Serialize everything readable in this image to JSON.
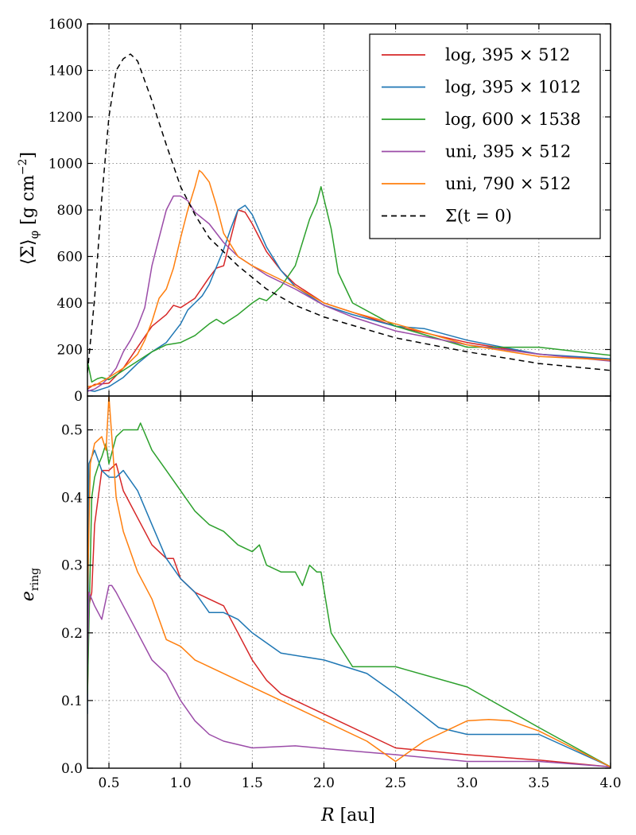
{
  "chart_data": [
    {
      "type": "line",
      "ylabel_main": "⟨Σ⟩",
      "ylabel_sub": "φ",
      "ylabel_unit": "[g cm",
      "ylabel_exp": "−2",
      "ylabel_close": "]",
      "xlim": [
        0.35,
        4.0
      ],
      "ylim": [
        0,
        1600
      ],
      "yticks": [
        "0",
        "200",
        "400",
        "600",
        "800",
        "1000",
        "1200",
        "1400",
        "1600"
      ],
      "ytick_values": [
        0,
        200,
        400,
        600,
        800,
        1000,
        1200,
        1400,
        1600
      ],
      "grid": true,
      "legend_position": "top-right",
      "series": [
        {
          "name": "log, 395 × 512",
          "color": "#d62728",
          "style": "solid",
          "x": [
            0.35,
            0.4,
            0.5,
            0.6,
            0.7,
            0.8,
            0.9,
            0.95,
            1.0,
            1.05,
            1.1,
            1.2,
            1.25,
            1.3,
            1.35,
            1.4,
            1.45,
            1.5,
            1.6,
            1.7,
            1.8,
            2.0,
            2.2,
            2.5,
            3.0,
            3.5,
            4.0
          ],
          "y": [
            30,
            50,
            55,
            120,
            210,
            300,
            350,
            390,
            380,
            400,
            420,
            510,
            550,
            560,
            680,
            800,
            790,
            740,
            620,
            540,
            480,
            400,
            360,
            300,
            230,
            180,
            155
          ]
        },
        {
          "name": "log, 395 × 1012",
          "color": "#1f77b4",
          "style": "solid",
          "x": [
            0.35,
            0.4,
            0.5,
            0.6,
            0.7,
            0.8,
            0.9,
            1.0,
            1.05,
            1.1,
            1.15,
            1.2,
            1.3,
            1.35,
            1.4,
            1.45,
            1.5,
            1.6,
            1.7,
            1.8,
            2.0,
            2.2,
            2.5,
            2.7,
            3.0,
            3.5,
            4.0
          ],
          "y": [
            25,
            20,
            40,
            80,
            140,
            190,
            230,
            310,
            370,
            400,
            430,
            480,
            630,
            720,
            800,
            820,
            780,
            640,
            540,
            470,
            390,
            350,
            300,
            290,
            240,
            180,
            160
          ]
        },
        {
          "name": "log, 600 × 1538",
          "color": "#2ca02c",
          "style": "solid",
          "x": [
            0.35,
            0.38,
            0.42,
            0.45,
            0.5,
            0.6,
            0.7,
            0.8,
            0.9,
            1.0,
            1.1,
            1.2,
            1.25,
            1.3,
            1.4,
            1.5,
            1.55,
            1.6,
            1.7,
            1.8,
            1.85,
            1.9,
            1.95,
            1.98,
            2.05,
            2.1,
            2.2,
            2.5,
            3.0,
            3.5,
            4.0
          ],
          "y": [
            150,
            60,
            75,
            80,
            70,
            110,
            150,
            190,
            220,
            230,
            260,
            310,
            330,
            310,
            350,
            400,
            420,
            410,
            470,
            560,
            660,
            760,
            830,
            900,
            720,
            530,
            400,
            300,
            210,
            210,
            175
          ]
        },
        {
          "name": "uni, 395 × 512",
          "color": "#9b4ca8",
          "style": "solid",
          "x": [
            0.35,
            0.4,
            0.45,
            0.5,
            0.55,
            0.6,
            0.65,
            0.7,
            0.75,
            0.8,
            0.85,
            0.9,
            0.95,
            1.0,
            1.05,
            1.1,
            1.2,
            1.3,
            1.4,
            1.5,
            1.6,
            1.8,
            2.0,
            2.2,
            2.5,
            3.0,
            3.5,
            4.0
          ],
          "y": [
            20,
            30,
            50,
            80,
            120,
            190,
            240,
            300,
            380,
            560,
            680,
            800,
            860,
            860,
            840,
            790,
            740,
            660,
            600,
            560,
            520,
            460,
            390,
            340,
            280,
            220,
            180,
            150
          ]
        },
        {
          "name": "uni, 790 × 512",
          "color": "#ff7f0e",
          "style": "solid",
          "x": [
            0.35,
            0.4,
            0.5,
            0.6,
            0.7,
            0.75,
            0.8,
            0.85,
            0.9,
            0.95,
            1.0,
            1.05,
            1.1,
            1.13,
            1.15,
            1.2,
            1.25,
            1.3,
            1.4,
            1.5,
            1.6,
            1.8,
            2.0,
            2.2,
            2.5,
            3.0,
            3.5,
            4.0
          ],
          "y": [
            40,
            45,
            80,
            120,
            180,
            240,
            320,
            420,
            460,
            550,
            680,
            800,
            900,
            970,
            960,
            920,
            820,
            700,
            600,
            560,
            530,
            470,
            400,
            360,
            310,
            220,
            170,
            155
          ]
        },
        {
          "name": "Σ(t = 0)",
          "color": "#000000",
          "style": "dashed",
          "x": [
            0.35,
            0.4,
            0.45,
            0.5,
            0.55,
            0.6,
            0.65,
            0.7,
            0.8,
            0.9,
            1.0,
            1.1,
            1.2,
            1.4,
            1.6,
            1.8,
            2.0,
            2.5,
            3.0,
            3.5,
            4.0
          ],
          "y": [
            100,
            420,
            850,
            1200,
            1400,
            1450,
            1470,
            1440,
            1270,
            1080,
            900,
            780,
            680,
            560,
            460,
            390,
            340,
            250,
            190,
            140,
            110
          ]
        }
      ]
    },
    {
      "type": "line",
      "ylabel_main": "e",
      "ylabel_sub": "ring",
      "xlabel_main": "R",
      "xlabel_unit": "[au]",
      "xlim": [
        0.35,
        4.0
      ],
      "ylim": [
        0,
        0.55
      ],
      "xticks": [
        "0.5",
        "1.0",
        "1.5",
        "2.0",
        "2.5",
        "3.0",
        "3.5",
        "4.0"
      ],
      "xtick_values": [
        0.5,
        1.0,
        1.5,
        2.0,
        2.5,
        3.0,
        3.5,
        4.0
      ],
      "yticks": [
        "0.0",
        "0.1",
        "0.2",
        "0.3",
        "0.4",
        "0.5"
      ],
      "ytick_values": [
        0.0,
        0.1,
        0.2,
        0.3,
        0.4,
        0.5
      ],
      "grid": true,
      "series": [
        {
          "name": "log, 395 × 512",
          "color": "#d62728",
          "style": "solid",
          "x": [
            0.35,
            0.36,
            0.38,
            0.4,
            0.45,
            0.5,
            0.55,
            0.6,
            0.7,
            0.8,
            0.9,
            0.95,
            1.0,
            1.1,
            1.2,
            1.3,
            1.35,
            1.4,
            1.5,
            1.6,
            1.7,
            2.0,
            2.5,
            3.0,
            3.5,
            4.0
          ],
          "y": [
            0.1,
            0.24,
            0.26,
            0.36,
            0.44,
            0.44,
            0.45,
            0.41,
            0.37,
            0.33,
            0.31,
            0.31,
            0.28,
            0.26,
            0.25,
            0.24,
            0.22,
            0.2,
            0.16,
            0.13,
            0.11,
            0.08,
            0.03,
            0.02,
            0.012,
            0.002
          ]
        },
        {
          "name": "log, 395 × 1012",
          "color": "#1f77b4",
          "style": "solid",
          "x": [
            0.35,
            0.36,
            0.4,
            0.45,
            0.5,
            0.55,
            0.6,
            0.7,
            0.8,
            0.9,
            1.0,
            1.1,
            1.2,
            1.3,
            1.4,
            1.5,
            1.7,
            2.0,
            2.3,
            2.5,
            2.8,
            3.0,
            3.5,
            4.0
          ],
          "y": [
            0.08,
            0.45,
            0.47,
            0.44,
            0.43,
            0.43,
            0.44,
            0.41,
            0.36,
            0.31,
            0.28,
            0.26,
            0.23,
            0.23,
            0.22,
            0.2,
            0.17,
            0.16,
            0.14,
            0.11,
            0.06,
            0.05,
            0.05,
            0.002
          ]
        },
        {
          "name": "log, 600 × 1538",
          "color": "#2ca02c",
          "style": "solid",
          "x": [
            0.35,
            0.38,
            0.4,
            0.43,
            0.45,
            0.48,
            0.5,
            0.55,
            0.6,
            0.7,
            0.72,
            0.8,
            0.9,
            1.0,
            1.1,
            1.2,
            1.3,
            1.4,
            1.5,
            1.55,
            1.6,
            1.7,
            1.8,
            1.85,
            1.9,
            1.95,
            1.98,
            2.05,
            2.2,
            2.5,
            3.0,
            3.5,
            4.0
          ],
          "y": [
            0.11,
            0.4,
            0.43,
            0.45,
            0.46,
            0.48,
            0.45,
            0.49,
            0.5,
            0.5,
            0.51,
            0.47,
            0.44,
            0.41,
            0.38,
            0.36,
            0.35,
            0.33,
            0.32,
            0.33,
            0.3,
            0.29,
            0.29,
            0.27,
            0.3,
            0.29,
            0.29,
            0.2,
            0.15,
            0.15,
            0.12,
            0.06,
            0.002
          ]
        },
        {
          "name": "uni, 395 × 512",
          "color": "#9b4ca8",
          "style": "solid",
          "x": [
            0.35,
            0.36,
            0.38,
            0.4,
            0.45,
            0.5,
            0.52,
            0.55,
            0.6,
            0.7,
            0.8,
            0.9,
            1.0,
            1.1,
            1.2,
            1.3,
            1.5,
            1.8,
            2.0,
            2.5,
            3.0,
            3.5,
            4.0
          ],
          "y": [
            0.15,
            0.26,
            0.25,
            0.24,
            0.22,
            0.27,
            0.27,
            0.26,
            0.24,
            0.2,
            0.16,
            0.14,
            0.1,
            0.07,
            0.05,
            0.04,
            0.03,
            0.033,
            0.029,
            0.02,
            0.01,
            0.01,
            0.002
          ]
        },
        {
          "name": "uni, 790 × 512",
          "color": "#ff7f0e",
          "style": "solid",
          "x": [
            0.35,
            0.37,
            0.4,
            0.45,
            0.48,
            0.5,
            0.55,
            0.6,
            0.7,
            0.8,
            0.85,
            0.9,
            1.0,
            1.05,
            1.1,
            1.2,
            1.5,
            2.0,
            2.3,
            2.5,
            2.7,
            3.0,
            3.15,
            3.3,
            3.5,
            4.0
          ],
          "y": [
            0.25,
            0.45,
            0.48,
            0.49,
            0.47,
            0.55,
            0.4,
            0.35,
            0.29,
            0.25,
            0.22,
            0.19,
            0.18,
            0.17,
            0.16,
            0.15,
            0.12,
            0.07,
            0.04,
            0.01,
            0.04,
            0.07,
            0.072,
            0.07,
            0.055,
            0.002
          ]
        }
      ]
    }
  ]
}
